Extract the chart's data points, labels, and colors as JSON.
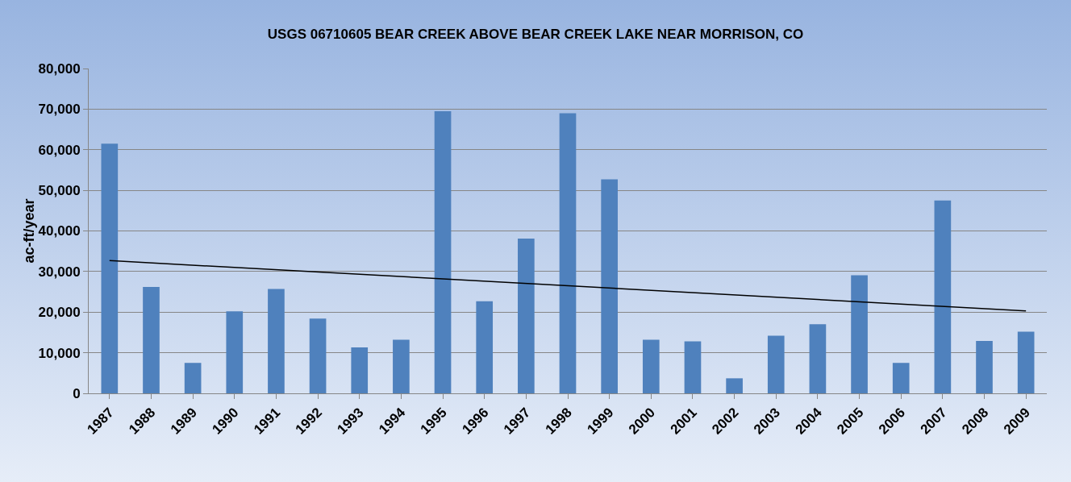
{
  "chart_data": {
    "type": "bar",
    "title": "USGS 06710605 BEAR CREEK ABOVE BEAR CREEK LAKE NEAR MORRISON, CO",
    "ylabel": "ac-ft/year",
    "categories": [
      "1987",
      "1988",
      "1989",
      "1990",
      "1991",
      "1992",
      "1993",
      "1994",
      "1995",
      "1996",
      "1997",
      "1998",
      "1999",
      "2000",
      "2001",
      "2002",
      "2003",
      "2004",
      "2005",
      "2006",
      "2007",
      "2008",
      "2009"
    ],
    "series": [
      {
        "color": "#4f81bd",
        "values": [
          61500,
          26200,
          7500,
          20200,
          25700,
          18400,
          11300,
          13200,
          69500,
          22700,
          38100,
          69000,
          52700,
          13200,
          12800,
          3700,
          14200,
          17000,
          29100,
          7500,
          47500,
          12900,
          15200
        ]
      },
      {
        "type": "line",
        "color": "#000000",
        "values": [
          32700,
          null,
          null,
          null,
          null,
          null,
          null,
          null,
          null,
          null,
          null,
          null,
          null,
          null,
          null,
          null,
          null,
          null,
          null,
          null,
          null,
          null,
          20300
        ]
      }
    ],
    "ylim": [
      0,
      80000
    ],
    "yticks": [
      {
        "value": 0,
        "label": "0"
      },
      {
        "value": 10000,
        "label": "10,000"
      },
      {
        "value": 20000,
        "label": "20,000"
      },
      {
        "value": 30000,
        "label": "30,000"
      },
      {
        "value": 40000,
        "label": "40,000"
      },
      {
        "value": 50000,
        "label": "50,000"
      },
      {
        "value": 60000,
        "label": "60,000"
      },
      {
        "value": 70000,
        "label": "70,000"
      },
      {
        "value": 80000,
        "label": "80,000"
      }
    ],
    "grid": "y",
    "legend": false
  }
}
